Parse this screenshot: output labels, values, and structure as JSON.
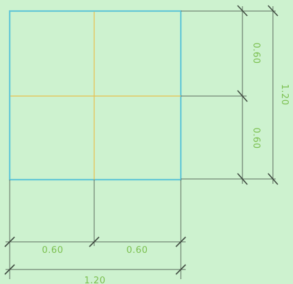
{
  "drawing": {
    "colors": {
      "background": "#cdf2cf",
      "outline": "#63c7d6",
      "centerline": "#e9bf4b",
      "dimension_line": "#5b6a5c",
      "dimension_text": "#7bbf4f"
    },
    "dimensions": {
      "bottom_left": "0.60",
      "bottom_right": "0.60",
      "bottom_total": "1.20",
      "right_upper": "0.60",
      "right_lower": "0.60",
      "right_total": "1.20"
    }
  }
}
